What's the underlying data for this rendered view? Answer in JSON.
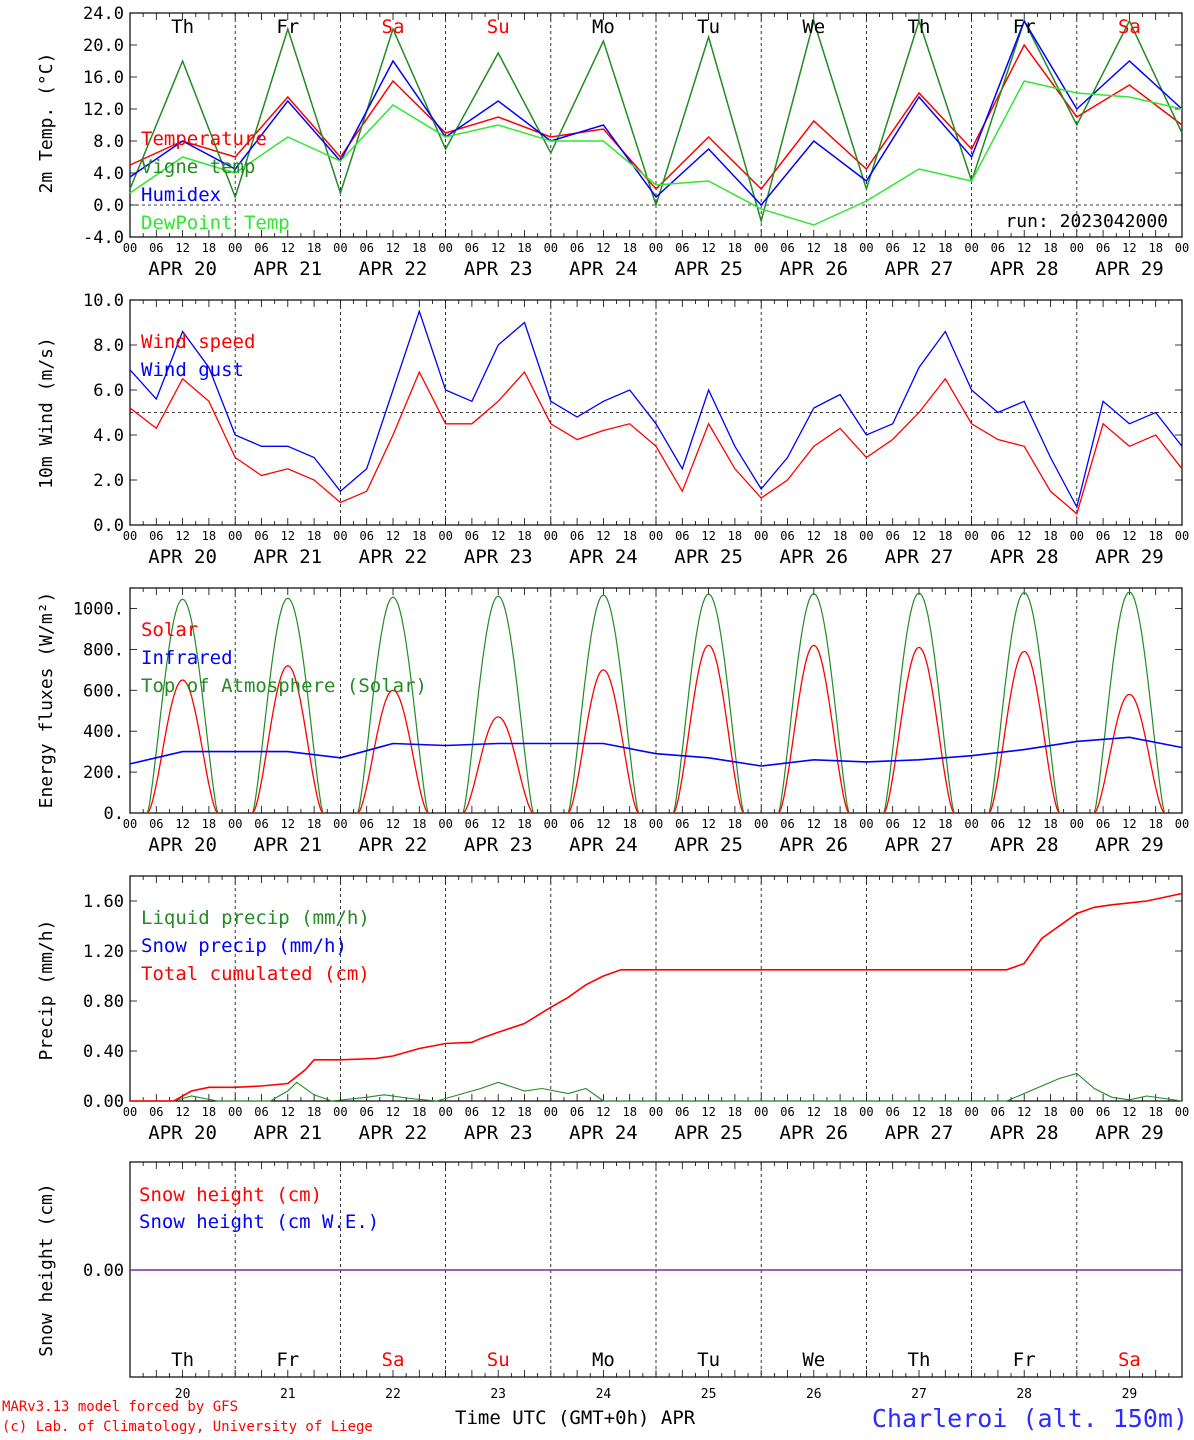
{
  "chart_data": [
    {
      "type": "line",
      "ylabel": "2m Temp. (°C)",
      "ylim": [
        -4,
        24
      ],
      "yticks": [
        "-4.0",
        "0.0",
        "4.0",
        "8.0",
        "12.0",
        "16.0",
        "20.0",
        "24.0"
      ],
      "ref_line": 0,
      "run_label": "run: 2023042000",
      "day_labels": [
        {
          "text": "Th",
          "color": "#000000"
        },
        {
          "text": "Fr",
          "color": "#000000"
        },
        {
          "text": "Sa",
          "color": "#ff0000"
        },
        {
          "text": "Su",
          "color": "#ff0000"
        },
        {
          "text": "Mo",
          "color": "#000000"
        },
        {
          "text": "Tu",
          "color": "#000000"
        },
        {
          "text": "We",
          "color": "#000000"
        },
        {
          "text": "Th",
          "color": "#000000"
        },
        {
          "text": "Fr",
          "color": "#000000"
        },
        {
          "text": "Sa",
          "color": "#ff0000"
        }
      ],
      "x_hours": [
        0,
        12,
        24,
        36,
        48,
        60,
        72,
        84,
        96,
        108,
        120,
        132,
        144,
        156,
        168,
        180,
        192,
        204,
        216,
        228,
        240
      ],
      "series": [
        {
          "name": "Temperature",
          "color": "#ff0000",
          "values": [
            5.0,
            8.0,
            6.0,
            13.5,
            6.0,
            15.5,
            9.0,
            11.0,
            8.5,
            9.5,
            2.0,
            8.5,
            2.0,
            10.5,
            4.5,
            14.0,
            7.0,
            20.0,
            11.0,
            15.0,
            10.0
          ]
        },
        {
          "name": "Vigne temp",
          "color": "#228b22",
          "values": [
            2.0,
            18.0,
            1.0,
            22.0,
            1.5,
            22.0,
            7.0,
            19.0,
            6.5,
            20.5,
            0.0,
            21.0,
            -2.0,
            23.0,
            2.0,
            23.0,
            3.0,
            23.0,
            10.0,
            23.0,
            9.0
          ]
        },
        {
          "name": "Humidex",
          "color": "#0000ff",
          "values": [
            3.5,
            8.0,
            4.5,
            13.0,
            5.5,
            18.0,
            8.5,
            13.0,
            8.0,
            10.0,
            1.0,
            7.0,
            0.0,
            8.0,
            3.0,
            13.5,
            6.0,
            23.0,
            12.0,
            18.0,
            12.0
          ]
        },
        {
          "name": "DewPoint Temp",
          "color": "#32e632",
          "values": [
            1.5,
            6.0,
            4.0,
            8.5,
            5.5,
            12.5,
            8.5,
            10.0,
            8.0,
            8.0,
            2.5,
            3.0,
            -0.5,
            -2.5,
            0.5,
            4.5,
            3.0,
            15.5,
            14.0,
            13.5,
            12.0
          ]
        }
      ]
    },
    {
      "type": "line",
      "ylabel": "10m Wind (m/s)",
      "ylim": [
        0,
        10
      ],
      "yticks": [
        "0.0",
        "2.0",
        "4.0",
        "6.0",
        "8.0",
        "10.0"
      ],
      "ref_line": 5,
      "x_hours": [
        0,
        6,
        12,
        18,
        24,
        30,
        36,
        42,
        48,
        54,
        60,
        66,
        72,
        78,
        84,
        90,
        96,
        102,
        108,
        114,
        120,
        126,
        132,
        138,
        144,
        150,
        156,
        162,
        168,
        174,
        180,
        186,
        192,
        198,
        204,
        210,
        216,
        222,
        228,
        234,
        240
      ],
      "series": [
        {
          "name": "Wind speed",
          "color": "#ff0000",
          "values": [
            5.2,
            4.3,
            6.5,
            5.5,
            3.0,
            2.2,
            2.5,
            2.0,
            1.0,
            1.5,
            4.0,
            6.8,
            4.5,
            4.5,
            5.5,
            6.8,
            4.5,
            3.8,
            4.2,
            4.5,
            3.5,
            1.5,
            4.5,
            2.5,
            1.2,
            2.0,
            3.5,
            4.3,
            3.0,
            3.8,
            5.0,
            6.5,
            4.5,
            3.8,
            3.5,
            1.5,
            0.5,
            4.5,
            3.5,
            4.0,
            2.5
          ]
        },
        {
          "name": "Wind gust",
          "color": "#0000ff",
          "values": [
            6.9,
            5.6,
            8.6,
            7.0,
            4.0,
            3.5,
            3.5,
            3.0,
            1.5,
            2.5,
            6.0,
            9.5,
            6.0,
            5.5,
            8.0,
            9.0,
            5.5,
            4.8,
            5.5,
            6.0,
            4.5,
            2.5,
            6.0,
            3.5,
            1.6,
            3.0,
            5.2,
            5.8,
            4.0,
            4.5,
            7.0,
            8.6,
            6.0,
            5.0,
            5.5,
            3.0,
            0.8,
            5.5,
            4.5,
            5.0,
            3.5
          ]
        }
      ]
    },
    {
      "type": "line",
      "ylabel": "Energy fluxes (W/m²)",
      "ylim": [
        0,
        1100
      ],
      "yticks": [
        "0.",
        "200.",
        "400.",
        "600.",
        "800.",
        "1000."
      ],
      "series": [
        {
          "name": "Solar",
          "color": "#ff0000",
          "daily_peak": [
            650,
            720,
            600,
            470,
            700,
            820,
            820,
            810,
            790,
            580
          ]
        },
        {
          "name": "Infrared",
          "color": "#0000ff",
          "x_hours": [
            0,
            12,
            24,
            36,
            48,
            60,
            72,
            84,
            96,
            108,
            120,
            132,
            144,
            156,
            168,
            180,
            192,
            204,
            216,
            228,
            240
          ],
          "values": [
            240,
            300,
            300,
            300,
            270,
            340,
            330,
            340,
            340,
            340,
            290,
            270,
            230,
            260,
            250,
            260,
            280,
            310,
            350,
            370,
            320
          ]
        },
        {
          "name": "Top of Atmosphere (Solar)",
          "color": "#228b22",
          "daily_peak": [
            1045,
            1050,
            1055,
            1060,
            1065,
            1070,
            1072,
            1075,
            1078,
            1080
          ]
        }
      ]
    },
    {
      "type": "line",
      "ylabel": "Precip (mm/h)",
      "ylim": [
        0,
        1.8
      ],
      "yticks": [
        "0.00",
        "0.40",
        "0.80",
        "1.20",
        "1.60"
      ],
      "series": [
        {
          "name": "Liquid precip (mm/h)",
          "color": "#228b22",
          "x_hours": [
            0,
            10,
            14,
            20,
            24,
            32,
            36,
            38,
            42,
            46,
            54,
            58,
            64,
            70,
            76,
            80,
            84,
            90,
            94,
            100,
            104,
            108,
            120,
            200,
            208,
            212,
            216,
            220,
            224,
            228,
            232,
            236,
            240
          ],
          "values": [
            0,
            0,
            0.04,
            0,
            0,
            0,
            0.08,
            0.15,
            0.05,
            0,
            0.03,
            0.05,
            0.02,
            0,
            0.06,
            0.1,
            0.15,
            0.08,
            0.1,
            0.06,
            0.1,
            0,
            0,
            0,
            0.12,
            0.18,
            0.22,
            0.1,
            0.03,
            0.01,
            0.04,
            0.02,
            0
          ]
        },
        {
          "name": "Snow precip (mm/h)",
          "color": "#0000ff",
          "values": [
            0,
            0
          ]
        },
        {
          "name": "Total cumulated (cm)",
          "color": "#ff0000",
          "x_hours": [
            0,
            10,
            14,
            18,
            24,
            30,
            36,
            40,
            42,
            48,
            56,
            60,
            66,
            72,
            78,
            80,
            84,
            90,
            96,
            100,
            104,
            108,
            112,
            120,
            200,
            204,
            208,
            216,
            220,
            224,
            232,
            240
          ],
          "values": [
            0,
            0,
            0.08,
            0.11,
            0.11,
            0.12,
            0.14,
            0.25,
            0.33,
            0.33,
            0.34,
            0.36,
            0.42,
            0.46,
            0.47,
            0.5,
            0.55,
            0.62,
            0.75,
            0.83,
            0.93,
            1.0,
            1.05,
            1.05,
            1.05,
            1.1,
            1.3,
            1.5,
            1.55,
            1.57,
            1.6,
            1.66
          ]
        }
      ]
    },
    {
      "type": "line",
      "ylabel": "Snow height (cm)",
      "ytick": "0.00",
      "series": [
        {
          "name": "Snow height (cm)",
          "color": "#ff0000",
          "values": [
            0,
            0
          ]
        },
        {
          "name": "Snow height (cm W.E.)",
          "color": "#0000ff",
          "values": [
            0,
            0
          ]
        }
      ]
    }
  ],
  "x_axis": {
    "hour_labels": [
      "00",
      "06",
      "12",
      "18"
    ],
    "end_label": "00",
    "dates": [
      "APR 20",
      "APR 21",
      "APR 22",
      "APR 23",
      "APR 24",
      "APR 25",
      "APR 26",
      "APR 27",
      "APR 28",
      "APR 29"
    ],
    "day_numbers": [
      "20",
      "21",
      "22",
      "23",
      "24",
      "25",
      "26",
      "27",
      "28",
      "29"
    ],
    "xlabel": "Time UTC (GMT+0h) APR"
  },
  "footer": {
    "credit_line1": "MARv3.13 model forced by GFS",
    "credit_line2": "(c) Lab. of Climatology, University of Liege",
    "location": "Charleroi (alt. 150m)"
  }
}
